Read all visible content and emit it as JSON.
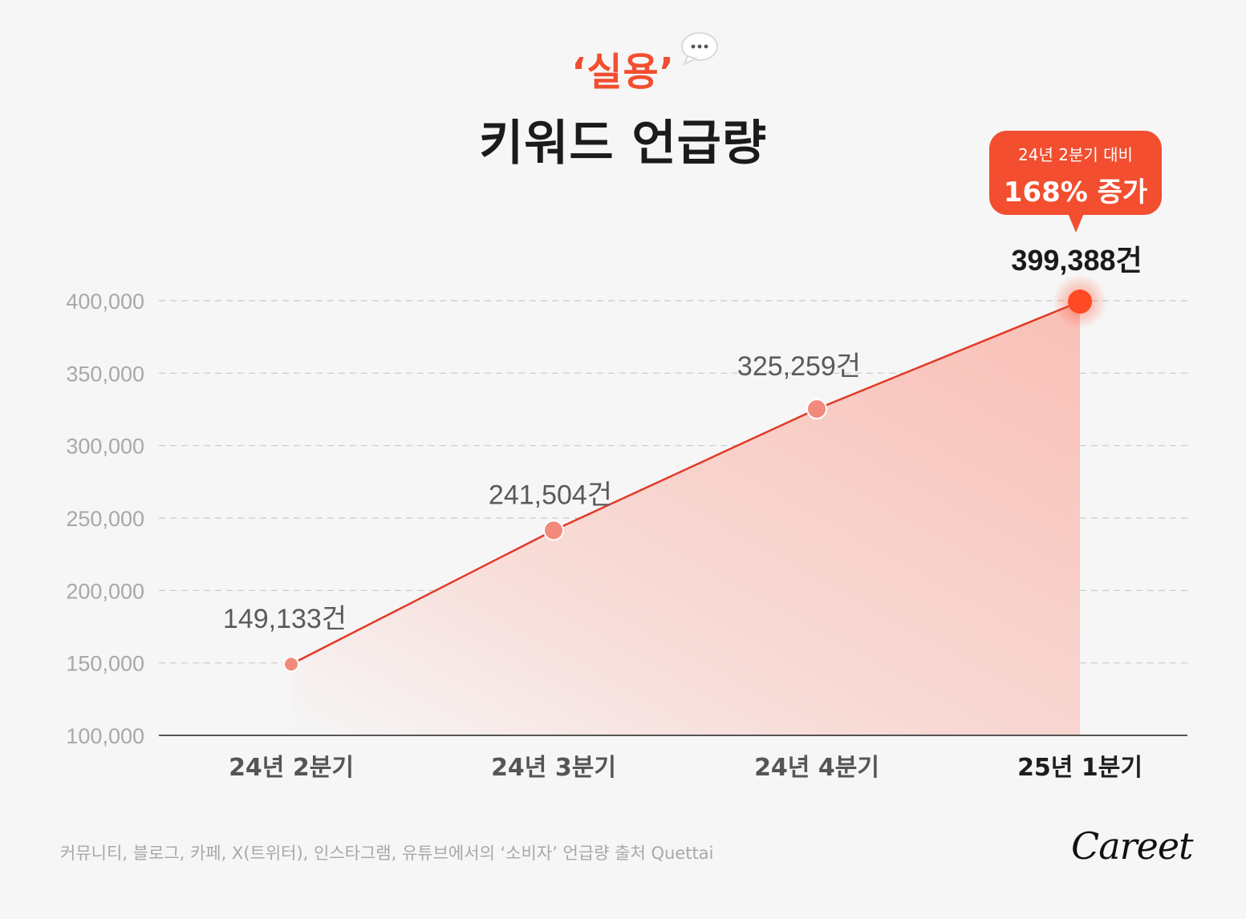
{
  "title": {
    "accent": "‘실용’",
    "main": "키워드 언급량"
  },
  "callout": {
    "line1": "24년 2분기 대비",
    "line2": "168% 증가"
  },
  "footnote": "커뮤니티, 블로그, 카페, X(트위터), 인스타그램, 유튜브에서의 ‘소비자’ 언급량 출처 Quettai",
  "logo": "Careet",
  "colors": {
    "accent": "#f24e2f",
    "line": "#e23a26",
    "point": "#f28a7c",
    "point_last": "#ff4a25"
  },
  "chart_data": {
    "type": "area",
    "categories": [
      "24년 2분기",
      "24년 3분기",
      "24년 4분기",
      "25년 1분기"
    ],
    "values": [
      149133,
      241504,
      325259,
      399388
    ],
    "data_labels": [
      "149,133건",
      "241,504건",
      "325,259건",
      "399,388건"
    ],
    "yticks": [
      "100,000",
      "150,000",
      "200,000",
      "250,000",
      "300,000",
      "350,000",
      "400,000"
    ],
    "ylim": [
      100000,
      400000
    ],
    "grid": true
  }
}
